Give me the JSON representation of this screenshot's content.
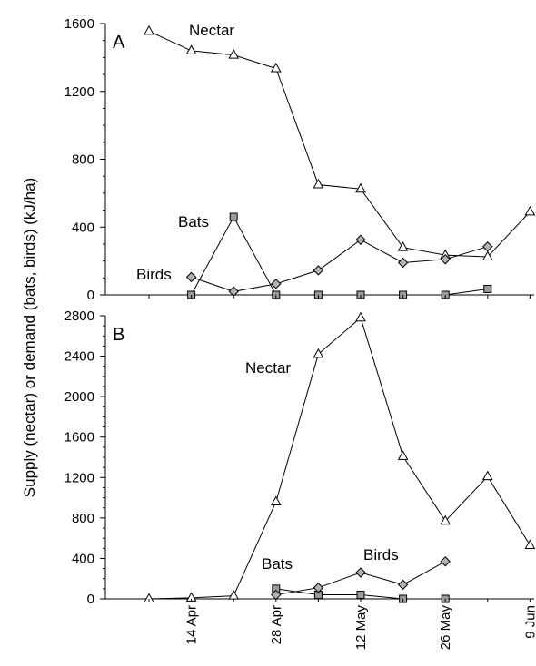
{
  "chart_data": [
    {
      "panel_label": "A",
      "type": "line",
      "x_dates": [
        "7 Apr",
        "14 Apr",
        "21 Apr",
        "28 Apr",
        "5 May",
        "12 May",
        "19 May",
        "26 May",
        "2 Jun",
        "9 Jun"
      ],
      "ylim": [
        0,
        1600
      ],
      "yticks": [
        0,
        400,
        800,
        1200,
        1600
      ],
      "series": [
        {
          "name": "Nectar",
          "symbol": "triangle",
          "points": [
            [
              "7 Apr",
              1555
            ],
            [
              "14 Apr",
              1440
            ],
            [
              "21 Apr",
              1415
            ],
            [
              "28 Apr",
              1335
            ],
            [
              "5 May",
              650
            ],
            [
              "12 May",
              625
            ],
            [
              "19 May",
              280
            ],
            [
              "26 May",
              235
            ],
            [
              "2 Jun",
              225
            ],
            [
              "9 Jun",
              490
            ]
          ]
        },
        {
          "name": "Bats",
          "symbol": "square",
          "points": [
            [
              "14 Apr",
              0
            ],
            [
              "21 Apr",
              460
            ],
            [
              "28 Apr",
              0
            ],
            [
              "5 May",
              0
            ],
            [
              "12 May",
              0
            ],
            [
              "19 May",
              0
            ],
            [
              "26 May",
              0
            ],
            [
              "2 Jun",
              35
            ]
          ]
        },
        {
          "name": "Birds",
          "symbol": "diamond",
          "points": [
            [
              "14 Apr",
              105
            ],
            [
              "21 Apr",
              20
            ],
            [
              "28 Apr",
              65
            ],
            [
              "5 May",
              145
            ],
            [
              "12 May",
              325
            ],
            [
              "19 May",
              190
            ],
            [
              "26 May",
              210
            ],
            [
              "2 Jun",
              285
            ]
          ]
        }
      ]
    },
    {
      "panel_label": "B",
      "type": "line",
      "x_dates": [
        "7 Apr",
        "14 Apr",
        "21 Apr",
        "28 Apr",
        "5 May",
        "12 May",
        "19 May",
        "26 May",
        "2 Jun",
        "9 Jun"
      ],
      "ylim": [
        0,
        2800
      ],
      "yticks": [
        0,
        400,
        800,
        1200,
        1600,
        2000,
        2400,
        2800
      ],
      "series": [
        {
          "name": "Nectar",
          "symbol": "triangle",
          "points": [
            [
              "7 Apr",
              0
            ],
            [
              "14 Apr",
              10
            ],
            [
              "21 Apr",
              30
            ],
            [
              "28 Apr",
              960
            ],
            [
              "5 May",
              2420
            ],
            [
              "12 May",
              2780
            ],
            [
              "19 May",
              1410
            ],
            [
              "26 May",
              770
            ],
            [
              "2 Jun",
              1210
            ],
            [
              "9 Jun",
              530
            ]
          ]
        },
        {
          "name": "Bats",
          "symbol": "square",
          "points": [
            [
              "28 Apr",
              100
            ],
            [
              "5 May",
              40
            ],
            [
              "12 May",
              40
            ],
            [
              "19 May",
              0
            ],
            [
              "26 May",
              0
            ]
          ]
        },
        {
          "name": "Birds",
          "symbol": "diamond",
          "points": [
            [
              "28 Apr",
              40
            ],
            [
              "5 May",
              110
            ],
            [
              "12 May",
              260
            ],
            [
              "19 May",
              140
            ],
            [
              "26 May",
              370
            ]
          ]
        }
      ]
    }
  ],
  "x_tick_labels": [
    "14 Apr",
    "28 Apr",
    "12 May",
    "26 May",
    "9 Jun"
  ],
  "ylabel": "Supply (nectar) or demand (bats, birds) (kJ/ha)",
  "colors": {
    "line": "#000000",
    "marker_fill_square": "#9a9a9a",
    "marker_fill_diamond": "#b3b3b3",
    "marker_fill_triangle": "#ffffff"
  }
}
